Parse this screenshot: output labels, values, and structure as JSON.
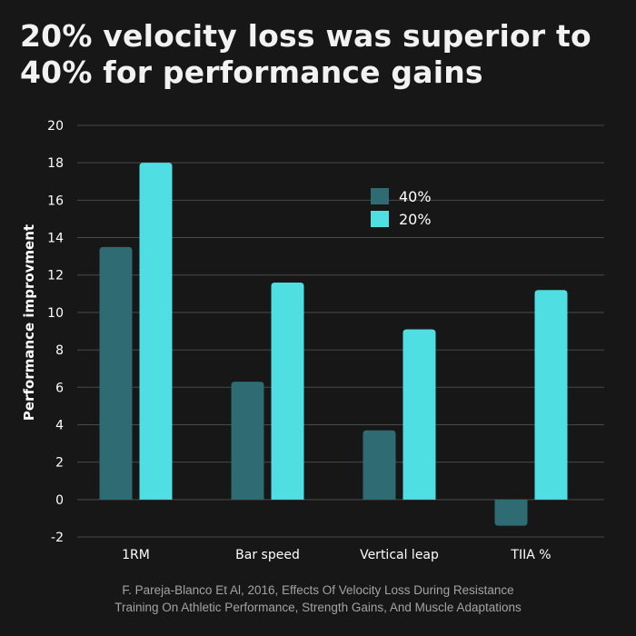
{
  "title_lines": [
    "20% velocity loss was superior to",
    "40% for performance gains"
  ],
  "source_lines": [
    "F. Pareja-Blanco Et Al, 2016,  Effects Of Velocity Loss During Resistance",
    "Training On Athletic Performance, Strength Gains, And Muscle Adaptations"
  ],
  "colors": {
    "background": "#171717",
    "series_40": "#2f6b73",
    "series_20": "#4fdfe3",
    "grid": "#4a4a4a",
    "text": "#ffffff"
  },
  "chart_data": {
    "type": "bar",
    "title": "20% velocity loss was superior to 40% for performance gains",
    "xlabel": "",
    "ylabel": "Performance improvment",
    "categories": [
      "1RM",
      "Bar speed",
      "Vertical leap",
      "TIIA %"
    ],
    "series": [
      {
        "name": "40%",
        "color": "#2f6b73",
        "values": [
          13.5,
          6.3,
          3.7,
          -1.4
        ]
      },
      {
        "name": "20%",
        "color": "#4fdfe3",
        "values": [
          18.0,
          11.6,
          9.1,
          11.2
        ]
      }
    ],
    "ylim": [
      -2,
      20
    ],
    "yticks": [
      -2,
      0,
      2,
      4,
      6,
      8,
      10,
      12,
      14,
      16,
      18,
      20
    ],
    "grid": true,
    "legend": "top-center"
  }
}
